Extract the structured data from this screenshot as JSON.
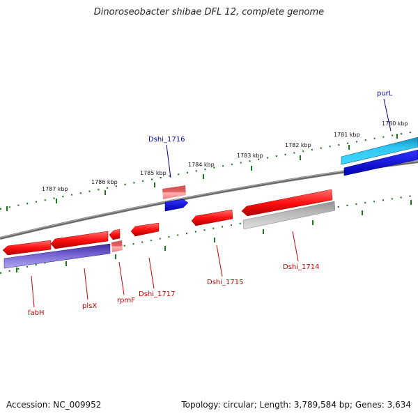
{
  "title": "Dinoroseobacter shibae DFL 12, complete genome",
  "accession": "Accession: NC_009952",
  "topology": "Topology: circular; Length: 3,789,584 bp; Genes: 3,634",
  "colors": {
    "backbone": "#808080",
    "tick": "#1a7a1a",
    "gene_red": "#ff1a1a",
    "gene_pink": "#f08080",
    "gene_blue": "#1010e0",
    "gene_cyan": "#22c4ee",
    "gene_purple": "#6a5acd",
    "gene_gray": "#b8b8b8",
    "label_red": "#cc0000",
    "label_blue": "#000099"
  },
  "scale_labels": [
    "1787 kbp",
    "1786 kbp",
    "1785 kbp",
    "1784 kbp",
    "1783 kbp",
    "1782 kbp",
    "1781 kbp",
    "1780 kbp"
  ],
  "gene_labels": {
    "fabH": "fabH",
    "plsX": "plsX",
    "rpmF": "rpmF",
    "dshi_1717": "Dshi_1717",
    "dshi_1715": "Dshi_1715",
    "dshi_1714": "Dshi_1714",
    "dshi_1716": "Dshi_1716",
    "purL": "purL"
  }
}
